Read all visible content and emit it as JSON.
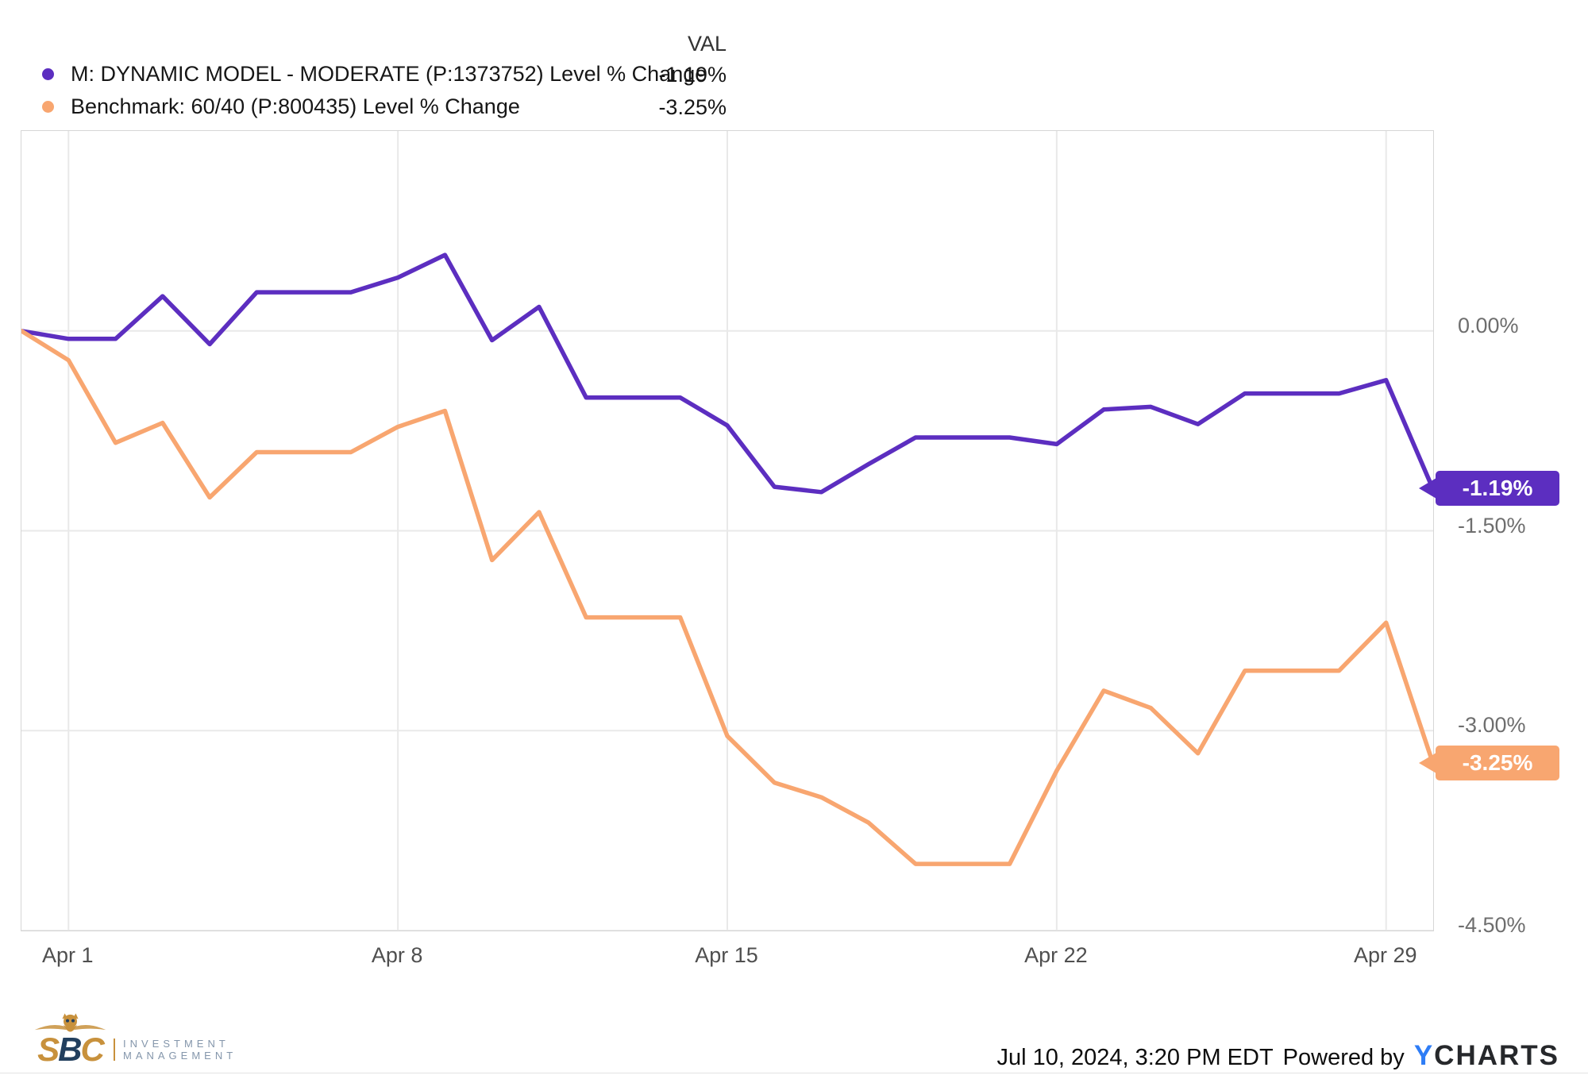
{
  "legend": {
    "val_header": "VAL",
    "series": [
      {
        "label": "M: DYNAMIC MODEL - MODERATE (P:1373752) Level % Change",
        "value": "-1.19%"
      },
      {
        "label": "Benchmark: 60/40 (P:800435) Level % Change",
        "value": "-3.25%"
      }
    ]
  },
  "chart_data": {
    "type": "line",
    "title": "",
    "xlabel": "",
    "ylabel": "Level % Change",
    "grid": true,
    "legend_position": "top-left",
    "x_axis": {
      "note": "x in days; day 0 = Mar 31 2024 (left edge, start value 0), day 30 = Apr 30 2024 (right edge); weekends carry prior close",
      "domain_days": [
        0,
        30
      ],
      "tick_days": [
        1,
        8,
        15,
        22,
        29
      ],
      "tick_labels": [
        "Apr 1",
        "Apr 8",
        "Apr 15",
        "Apr 22",
        "Apr 29"
      ]
    },
    "y_axis": {
      "unit": "%",
      "ylim": [
        -4.5,
        1.5
      ],
      "tick_values": [
        0.0,
        -1.5,
        -3.0,
        -4.5
      ],
      "tick_labels": [
        "0.00%",
        "-1.50%",
        "-3.00%",
        "-4.50%"
      ]
    },
    "series": [
      {
        "name": "M: DYNAMIC MODEL - MODERATE (P:1373752) Level % Change",
        "color": "#5c2ec0",
        "end_tag": "-1.19%",
        "points": [
          [
            0,
            0.0
          ],
          [
            1,
            -0.06
          ],
          [
            2,
            -0.06
          ],
          [
            3,
            0.26
          ],
          [
            4,
            -0.1
          ],
          [
            5,
            0.29
          ],
          [
            6,
            0.29
          ],
          [
            7,
            0.29
          ],
          [
            8,
            0.4
          ],
          [
            9,
            0.57
          ],
          [
            10,
            -0.07
          ],
          [
            11,
            0.18
          ],
          [
            12,
            -0.5
          ],
          [
            13,
            -0.5
          ],
          [
            14,
            -0.5
          ],
          [
            15,
            -0.71
          ],
          [
            16,
            -1.17
          ],
          [
            17,
            -1.21
          ],
          [
            18,
            -1.0
          ],
          [
            19,
            -0.8
          ],
          [
            20,
            -0.8
          ],
          [
            21,
            -0.8
          ],
          [
            22,
            -0.85
          ],
          [
            23,
            -0.59
          ],
          [
            24,
            -0.57
          ],
          [
            25,
            -0.7
          ],
          [
            26,
            -0.47
          ],
          [
            27,
            -0.47
          ],
          [
            28,
            -0.47
          ],
          [
            29,
            -0.37
          ],
          [
            30,
            -1.19
          ]
        ]
      },
      {
        "name": "Benchmark: 60/40 (P:800435) Level % Change",
        "color": "#f8a670",
        "end_tag": "-3.25%",
        "points": [
          [
            0,
            0.0
          ],
          [
            1,
            -0.22
          ],
          [
            2,
            -0.84
          ],
          [
            3,
            -0.69
          ],
          [
            4,
            -1.25
          ],
          [
            5,
            -0.91
          ],
          [
            6,
            -0.91
          ],
          [
            7,
            -0.91
          ],
          [
            8,
            -0.72
          ],
          [
            9,
            -0.6
          ],
          [
            10,
            -1.72
          ],
          [
            11,
            -1.36
          ],
          [
            12,
            -2.15
          ],
          [
            13,
            -2.15
          ],
          [
            14,
            -2.15
          ],
          [
            15,
            -3.04
          ],
          [
            16,
            -3.39
          ],
          [
            17,
            -3.5
          ],
          [
            18,
            -3.69
          ],
          [
            19,
            -4.0
          ],
          [
            20,
            -4.0
          ],
          [
            21,
            -4.0
          ],
          [
            22,
            -3.3
          ],
          [
            23,
            -2.7
          ],
          [
            24,
            -2.83
          ],
          [
            25,
            -3.17
          ],
          [
            26,
            -2.55
          ],
          [
            27,
            -2.55
          ],
          [
            28,
            -2.55
          ],
          [
            29,
            -2.19
          ],
          [
            30,
            -3.25
          ]
        ]
      }
    ]
  },
  "footer": {
    "timestamp": "Jul 10, 2024, 3:20 PM EDT",
    "powered_by": "Powered by",
    "brand_y": "Y",
    "brand_rest": "CHARTS",
    "logo": {
      "s": "S",
      "b": "B",
      "c": "C",
      "line1": "INVESTMENT",
      "line2": "MANAGEMENT"
    }
  }
}
